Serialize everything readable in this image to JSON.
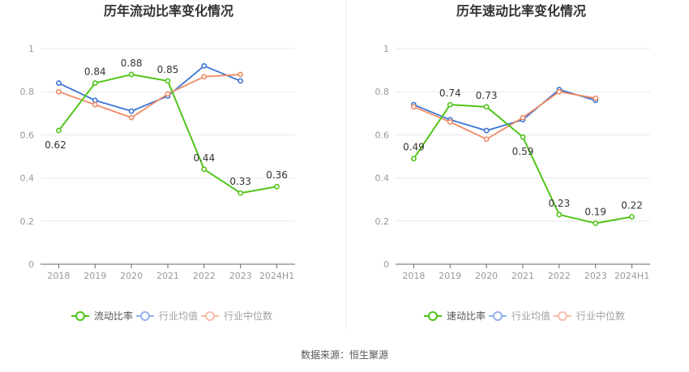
{
  "source_label": "数据来源：恒生聚源",
  "colors": {
    "primary": "#52c41a",
    "industry_avg": "#3b74d6",
    "industry_median": "#f08b65"
  },
  "chart_data": [
    {
      "type": "line",
      "title": "历年流动比率变化情况",
      "categories": [
        "2018",
        "2019",
        "2020",
        "2021",
        "2022",
        "2023",
        "2024H1"
      ],
      "ylim": [
        0,
        1
      ],
      "yticks": [
        "0",
        "0.2",
        "0.4",
        "0.6",
        "0.8",
        "1"
      ],
      "grid": true,
      "legend_position": "bottom",
      "series": [
        {
          "name": "流动比率",
          "color": "#52c41a",
          "values": [
            0.62,
            0.84,
            0.88,
            0.85,
            0.44,
            0.33,
            0.36
          ],
          "labels": [
            "0.62",
            "0.84",
            "0.88",
            "0.85",
            "0.44",
            "0.33",
            "0.36"
          ]
        },
        {
          "name": "行业均值",
          "color": "#3b74d6",
          "values": [
            0.84,
            0.76,
            0.71,
            0.78,
            0.92,
            0.85,
            null
          ]
        },
        {
          "name": "行业中位数",
          "color": "#f08b65",
          "values": [
            0.8,
            0.74,
            0.68,
            0.79,
            0.87,
            0.88,
            null
          ]
        }
      ]
    },
    {
      "type": "line",
      "title": "历年速动比率变化情况",
      "categories": [
        "2018",
        "2019",
        "2020",
        "2021",
        "2022",
        "2023",
        "2024H1"
      ],
      "ylim": [
        0,
        1
      ],
      "yticks": [
        "0",
        "0.2",
        "0.4",
        "0.6",
        "0.8",
        "1"
      ],
      "grid": true,
      "legend_position": "bottom",
      "series": [
        {
          "name": "速动比率",
          "color": "#52c41a",
          "values": [
            0.49,
            0.74,
            0.73,
            0.59,
            0.23,
            0.19,
            0.22
          ],
          "labels": [
            "0.49",
            "0.74",
            "0.73",
            "0.59",
            "0.23",
            "0.19",
            "0.22"
          ]
        },
        {
          "name": "行业均值",
          "color": "#3b74d6",
          "values": [
            0.74,
            0.67,
            0.62,
            0.67,
            0.81,
            0.76,
            null
          ]
        },
        {
          "name": "行业中位数",
          "color": "#f08b65",
          "values": [
            0.73,
            0.66,
            0.58,
            0.68,
            0.8,
            0.77,
            null
          ]
        }
      ]
    }
  ]
}
